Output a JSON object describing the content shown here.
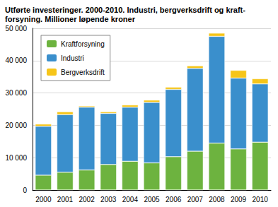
{
  "chart_data": {
    "type": "bar",
    "title": "Utførte investeringer. 2000-2010. Industri, bergverksdrift og kraft-\nforsyning. Millioner løpende kroner",
    "categories": [
      "2000",
      "2001",
      "2002",
      "2003",
      "2004",
      "2005",
      "2006",
      "2007",
      "2008",
      "2009",
      "2010"
    ],
    "series": [
      {
        "name": "Kraftforsyning",
        "color": "#6db33f",
        "values": [
          4600,
          5500,
          6200,
          7900,
          8900,
          8400,
          10300,
          12000,
          14500,
          12700,
          14800
        ]
      },
      {
        "name": "Industri",
        "color": "#3a8fcc",
        "values": [
          15100,
          17800,
          19400,
          15800,
          16700,
          18700,
          20800,
          25600,
          33000,
          21900,
          18000
        ]
      },
      {
        "name": "Bergverksdrift",
        "color": "#f6c519",
        "values": [
          700,
          900,
          400,
          500,
          700,
          700,
          700,
          800,
          1000,
          2400,
          1600
        ]
      }
    ],
    "stacked": true,
    "ylim": [
      0,
      50000
    ],
    "yticks": [
      0,
      {
        "value": 10000,
        "label": "10 000"
      },
      {
        "value": 20000,
        "label": "20 000"
      },
      {
        "value": 30000,
        "label": "30 000"
      },
      {
        "value": 40000,
        "label": "40 000"
      },
      {
        "value": 50000,
        "label": "50 000"
      }
    ],
    "grid": true,
    "legend": "upper left"
  }
}
